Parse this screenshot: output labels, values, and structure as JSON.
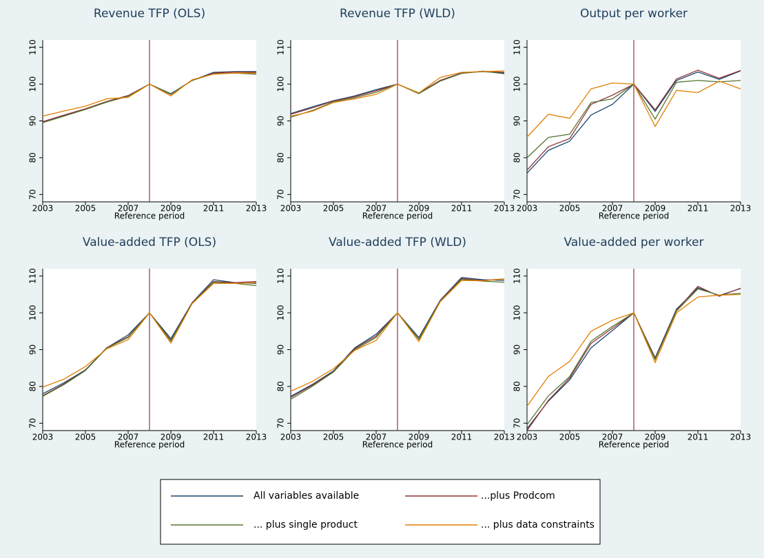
{
  "chart_data": [
    {
      "type": "line",
      "title": "Revenue TFP (OLS)",
      "xlabel": "Reference period",
      "x": [
        2003,
        2004,
        2005,
        2006,
        2007,
        2008,
        2009,
        2010,
        2011,
        2012,
        2013
      ],
      "xlim": [
        2003,
        2013
      ],
      "xticks": [
        2003,
        2005,
        2007,
        2009,
        2011,
        2013
      ],
      "ylim": [
        68,
        112
      ],
      "yticks": [
        70,
        80,
        90,
        100,
        110
      ],
      "xline": 2008,
      "xline_color": "#90353b",
      "series": [
        {
          "color": "#1a476f",
          "values": [
            89.8,
            91.5,
            93.2,
            95.2,
            96.8,
            100,
            97.4,
            101,
            103.2,
            103.4,
            103.4
          ]
        },
        {
          "color": "#90353b",
          "values": [
            89.8,
            91.6,
            93.3,
            95.3,
            96.9,
            100,
            97.2,
            101,
            103,
            103.3,
            103.2
          ]
        },
        {
          "color": "#55752f",
          "values": [
            89.5,
            91.3,
            93.1,
            95.1,
            96.7,
            100,
            97.3,
            101,
            102.8,
            103,
            102.7
          ]
        },
        {
          "color": "#e37e00",
          "values": [
            91.3,
            92.7,
            94,
            96,
            96.4,
            100,
            96.8,
            101.2,
            102.7,
            103,
            103
          ]
        }
      ]
    },
    {
      "type": "line",
      "title": "Revenue TFP (WLD)",
      "xlabel": "Reference period",
      "x": [
        2003,
        2004,
        2005,
        2006,
        2007,
        2008,
        2009,
        2010,
        2011,
        2012,
        2013
      ],
      "xlim": [
        2003,
        2013
      ],
      "xticks": [
        2003,
        2005,
        2007,
        2009,
        2011,
        2013
      ],
      "ylim": [
        68,
        112
      ],
      "yticks": [
        70,
        80,
        90,
        100,
        110
      ],
      "xline": 2008,
      "xline_color": "#90353b",
      "series": [
        {
          "color": "#1a476f",
          "values": [
            92,
            93.8,
            95.5,
            96.8,
            98.5,
            100,
            97.6,
            101,
            103,
            103.4,
            103
          ]
        },
        {
          "color": "#90353b",
          "values": [
            91.8,
            93.5,
            95.4,
            96.6,
            98.2,
            100,
            97.5,
            101,
            103,
            103.5,
            103.2
          ]
        },
        {
          "color": "#55752f",
          "values": [
            91,
            92.8,
            95.2,
            96.3,
            97.8,
            100,
            97.4,
            100.8,
            102.9,
            103.5,
            102.8
          ]
        },
        {
          "color": "#e37e00",
          "values": [
            91.3,
            92.6,
            95,
            96,
            97.2,
            100,
            97.6,
            101.8,
            103.2,
            103.4,
            103.6
          ]
        }
      ]
    },
    {
      "type": "line",
      "title": "Output per worker",
      "xlabel": "Reference period",
      "x": [
        2003,
        2004,
        2005,
        2006,
        2007,
        2008,
        2009,
        2010,
        2011,
        2012,
        2013
      ],
      "xlim": [
        2003,
        2013
      ],
      "xticks": [
        2003,
        2005,
        2007,
        2009,
        2011,
        2013
      ],
      "ylim": [
        68,
        112
      ],
      "yticks": [
        70,
        80,
        90,
        100,
        110
      ],
      "xline": 2008,
      "xline_color": "#90353b",
      "series": [
        {
          "color": "#1a476f",
          "values": [
            75.8,
            82,
            84.5,
            91.6,
            94.5,
            100,
            92.6,
            101,
            103.3,
            101.3,
            103.6
          ]
        },
        {
          "color": "#90353b",
          "values": [
            76.6,
            83,
            85.2,
            94.5,
            97,
            100,
            93,
            101.4,
            103.8,
            101.6,
            103.7
          ]
        },
        {
          "color": "#55752f",
          "values": [
            80,
            85.5,
            86.4,
            95,
            96,
            100,
            90.5,
            100.5,
            101,
            100.6,
            101
          ]
        },
        {
          "color": "#e37e00",
          "values": [
            85.6,
            91.8,
            90.7,
            98.7,
            100.3,
            100,
            88.5,
            98.3,
            97.7,
            100.8,
            98.7
          ]
        }
      ]
    },
    {
      "type": "line",
      "title": "Value-added TFP (OLS)",
      "xlabel": "Reference period",
      "x": [
        2003,
        2004,
        2005,
        2006,
        2007,
        2008,
        2009,
        2010,
        2011,
        2012,
        2013
      ],
      "xlim": [
        2003,
        2013
      ],
      "xticks": [
        2003,
        2005,
        2007,
        2009,
        2011,
        2013
      ],
      "ylim": [
        68,
        112
      ],
      "yticks": [
        70,
        80,
        90,
        100,
        110
      ],
      "xline": 2008,
      "xline_color": "#90353b",
      "series": [
        {
          "color": "#1a476f",
          "values": [
            78,
            81,
            84.5,
            90.5,
            94,
            100,
            93,
            102.8,
            109,
            108.2,
            108
          ]
        },
        {
          "color": "#90353b",
          "values": [
            77.5,
            80.7,
            84.4,
            90.5,
            93.5,
            100,
            92.5,
            102.7,
            108.5,
            108.2,
            108.5
          ]
        },
        {
          "color": "#55752f",
          "values": [
            77.3,
            80.5,
            84.3,
            90.4,
            93.3,
            100,
            92.3,
            102.6,
            108.3,
            108,
            107.4
          ]
        },
        {
          "color": "#e37e00",
          "values": [
            79.8,
            82,
            85.4,
            90.2,
            92.7,
            100,
            91.8,
            102.5,
            108,
            108,
            108.2
          ]
        }
      ]
    },
    {
      "type": "line",
      "title": "Value-added TFP (WLD)",
      "xlabel": "Reference period",
      "x": [
        2003,
        2004,
        2005,
        2006,
        2007,
        2008,
        2009,
        2010,
        2011,
        2012,
        2013
      ],
      "xlim": [
        2003,
        2013
      ],
      "xticks": [
        2003,
        2005,
        2007,
        2009,
        2011,
        2013
      ],
      "ylim": [
        68,
        112
      ],
      "yticks": [
        70,
        80,
        90,
        100,
        110
      ],
      "xline": 2008,
      "xline_color": "#90353b",
      "series": [
        {
          "color": "#1a476f",
          "values": [
            77.3,
            80.5,
            84.2,
            90.5,
            94.2,
            100,
            93.3,
            103.4,
            109.6,
            109,
            108.8
          ]
        },
        {
          "color": "#90353b",
          "values": [
            77,
            80.3,
            84,
            90.3,
            93.7,
            100,
            92.8,
            103.2,
            109.3,
            108.8,
            109.2
          ]
        },
        {
          "color": "#55752f",
          "values": [
            76.5,
            80,
            83.9,
            90,
            93.3,
            100,
            92.8,
            103.1,
            109.1,
            108.6,
            108.3
          ]
        },
        {
          "color": "#e37e00",
          "values": [
            78.7,
            81.3,
            84.8,
            89.8,
            92.5,
            100,
            92.2,
            103,
            108.8,
            108.7,
            109.2
          ]
        }
      ]
    },
    {
      "type": "line",
      "title": "Value-added per worker",
      "xlabel": "Reference period",
      "x": [
        2003,
        2004,
        2005,
        2006,
        2007,
        2008,
        2009,
        2010,
        2011,
        2012,
        2013
      ],
      "xlim": [
        2003,
        2013
      ],
      "xticks": [
        2003,
        2005,
        2007,
        2009,
        2011,
        2013
      ],
      "ylim": [
        68,
        112
      ],
      "yticks": [
        70,
        80,
        90,
        100,
        110
      ],
      "xline": 2008,
      "xline_color": "#90353b",
      "series": [
        {
          "color": "#1a476f",
          "values": [
            68.5,
            76,
            81.8,
            90.5,
            95.2,
            100,
            87.8,
            101,
            106.8,
            104.7,
            106.6
          ]
        },
        {
          "color": "#90353b",
          "values": [
            68,
            76.2,
            82.3,
            91.7,
            95.8,
            100,
            87.5,
            100.7,
            107.2,
            104.5,
            106.7
          ]
        },
        {
          "color": "#55752f",
          "values": [
            69.6,
            77.4,
            82.7,
            92.3,
            96.3,
            100,
            87.3,
            100.5,
            106.5,
            104.8,
            105.3
          ]
        },
        {
          "color": "#e37e00",
          "values": [
            74.6,
            82.7,
            86.8,
            95,
            98,
            100,
            86.5,
            100,
            104.3,
            104.8,
            105
          ]
        }
      ]
    }
  ],
  "legend": {
    "position": "bottom",
    "entries": [
      "All variables available",
      "...plus Prodcom",
      "... plus single product",
      "... plus data constraints"
    ]
  }
}
